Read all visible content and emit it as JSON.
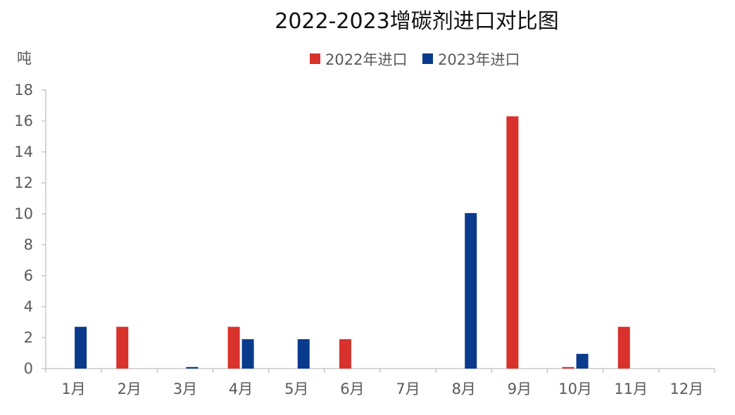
{
  "chart_data": {
    "type": "bar",
    "title": "2022-2023增碳剂进口对比图",
    "ylabel": "吨",
    "xlabel": "",
    "ylim": [
      0,
      18
    ],
    "yticks": [
      0,
      2,
      4,
      6,
      8,
      10,
      12,
      14,
      16,
      18
    ],
    "grid": false,
    "legend": "top-center",
    "categories": [
      "1月",
      "2月",
      "3月",
      "4月",
      "5月",
      "6月",
      "7月",
      "8月",
      "9月",
      "10月",
      "11月",
      "12月"
    ],
    "series": [
      {
        "name": "2022年进口",
        "color": "#d9312b",
        "values": [
          0,
          2.7,
          0,
          2.7,
          0,
          1.9,
          0,
          0,
          16.3,
          0.1,
          2.7,
          0
        ]
      },
      {
        "name": "2023年进口",
        "color": "#0a3a8c",
        "values": [
          2.7,
          0,
          0.1,
          1.9,
          1.9,
          0,
          0,
          10.05,
          0,
          0.95,
          0,
          0
        ]
      }
    ]
  }
}
